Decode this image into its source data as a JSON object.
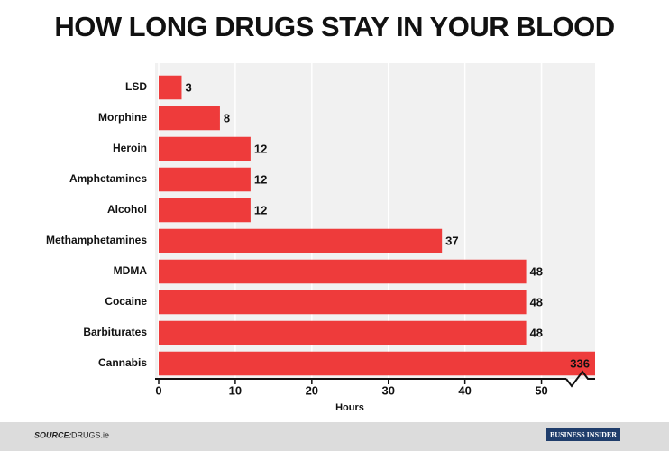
{
  "chart_data": {
    "type": "bar",
    "orientation": "horizontal",
    "title": "HOW LONG DRUGS STAY IN YOUR BLOOD",
    "categories": [
      "LSD",
      "Morphine",
      "Heroin",
      "Amphetamines",
      "Alcohol",
      "Methamphetamines",
      "MDMA",
      "Cocaine",
      "Barbiturates",
      "Cannabis"
    ],
    "values": [
      3,
      8,
      12,
      12,
      12,
      37,
      48,
      48,
      48,
      336
    ],
    "color": "#ee3b3b",
    "xlim": [
      0,
      57
    ],
    "xticks": [
      0,
      10,
      20,
      30,
      40,
      50
    ],
    "grid": true,
    "axis_break": true,
    "x_label": "Hours",
    "source_label": "SOURCE:",
    "source": "DRUGS.ie",
    "publisher": "BUSINESS INSIDER"
  }
}
